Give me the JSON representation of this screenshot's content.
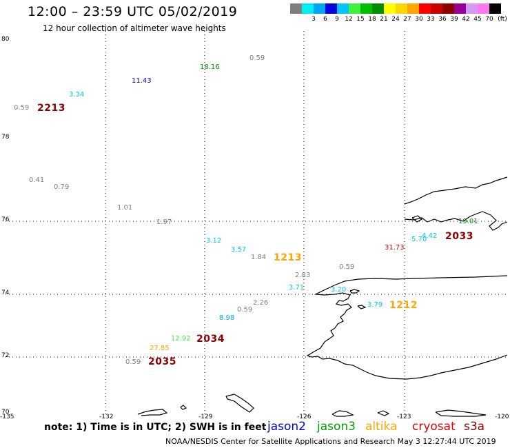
{
  "header": {
    "title": "12:00 – 23:59 UTC 05/02/2019",
    "subtitle": "12 hour collection of altimeter wave heights"
  },
  "color_scale": {
    "unit": "(ft)",
    "colors": [
      "#7f7f7f",
      "#00f0f0",
      "#00a6f5",
      "#0000e0",
      "#00c3ff",
      "#41ef41",
      "#00bf00",
      "#008c00",
      "#ffff00",
      "#ffd700",
      "#ffa500",
      "#ff0000",
      "#c80000",
      "#8c0000",
      "#960096",
      "#d29bf0",
      "#ff78f0",
      "#000000"
    ],
    "labels": [
      "3",
      "6",
      "9",
      "12",
      "15",
      "18",
      "21",
      "24",
      "27",
      "30",
      "33",
      "36",
      "39",
      "42",
      "45",
      "70"
    ]
  },
  "axes": {
    "lat_labels": [
      "80",
      "78",
      "76",
      "74",
      "72",
      "70"
    ],
    "lon_labels": [
      "-135",
      "-132",
      "-129",
      "-126",
      "-123",
      "-120"
    ]
  },
  "observations": [
    {
      "text": "18.16",
      "color": "#008c00"
    },
    {
      "text": "0.59",
      "color": "#7f7f7f"
    },
    {
      "text": "11.43",
      "color": "#0000c0"
    },
    {
      "text": "3.34",
      "color": "#00c8e6"
    },
    {
      "text": "0.59",
      "color": "#7f7f7f"
    },
    {
      "text": "0.41",
      "color": "#7f7f7f"
    },
    {
      "text": "0.79",
      "color": "#7f7f7f"
    },
    {
      "text": "1.01",
      "color": "#7f7f7f"
    },
    {
      "text": "1.97",
      "color": "#7f7f7f"
    },
    {
      "text": "3.12",
      "color": "#00c8e6"
    },
    {
      "text": "3.57",
      "color": "#00c8e6"
    },
    {
      "text": "1.84",
      "color": "#7f7f7f"
    },
    {
      "text": "2.83",
      "color": "#7f7f7f"
    },
    {
      "text": "0.59",
      "color": "#7f7f7f"
    },
    {
      "text": "3.71",
      "color": "#00c8e6"
    },
    {
      "text": "3.20",
      "color": "#00c8e6"
    },
    {
      "text": "2.26",
      "color": "#7f7f7f"
    },
    {
      "text": "0.59",
      "color": "#7f7f7f"
    },
    {
      "text": "8.98",
      "color": "#00a6f5"
    },
    {
      "text": "3.79",
      "color": "#00c8e6"
    },
    {
      "text": "12.92",
      "color": "#41ef41"
    },
    {
      "text": "27.85",
      "color": "#ffa500"
    },
    {
      "text": "0.59",
      "color": "#7f7f7f"
    },
    {
      "text": "31.73",
      "color": "#e00000"
    },
    {
      "text": "5.70",
      "color": "#00c8e6"
    },
    {
      "text": "4.42",
      "color": "#00c8e6"
    },
    {
      "text": "19.01",
      "color": "#008c00"
    }
  ],
  "pass_times": [
    {
      "text": "2213",
      "color": "#8c0000"
    },
    {
      "text": "1213",
      "color": "#ffa500"
    },
    {
      "text": "1212",
      "color": "#ffa500"
    },
    {
      "text": "2034",
      "color": "#8c0000"
    },
    {
      "text": "2035",
      "color": "#8c0000"
    },
    {
      "text": "2033",
      "color": "#8c0000"
    }
  ],
  "note": "note: 1) Time is in UTC; 2) SWH is in feet",
  "satellites": [
    {
      "name": "jason2",
      "color": "#0000c8"
    },
    {
      "name": "jason3",
      "color": "#00a000"
    },
    {
      "name": "altika",
      "color": "#ffa500"
    },
    {
      "name": "cryosat",
      "color": "#e00000"
    },
    {
      "name": "s3a",
      "color": "#8c0000"
    }
  ],
  "footer": "NOAA/NESDIS Center for Satellite Applications and Research    May  3 12:27:44 UTC 2019"
}
